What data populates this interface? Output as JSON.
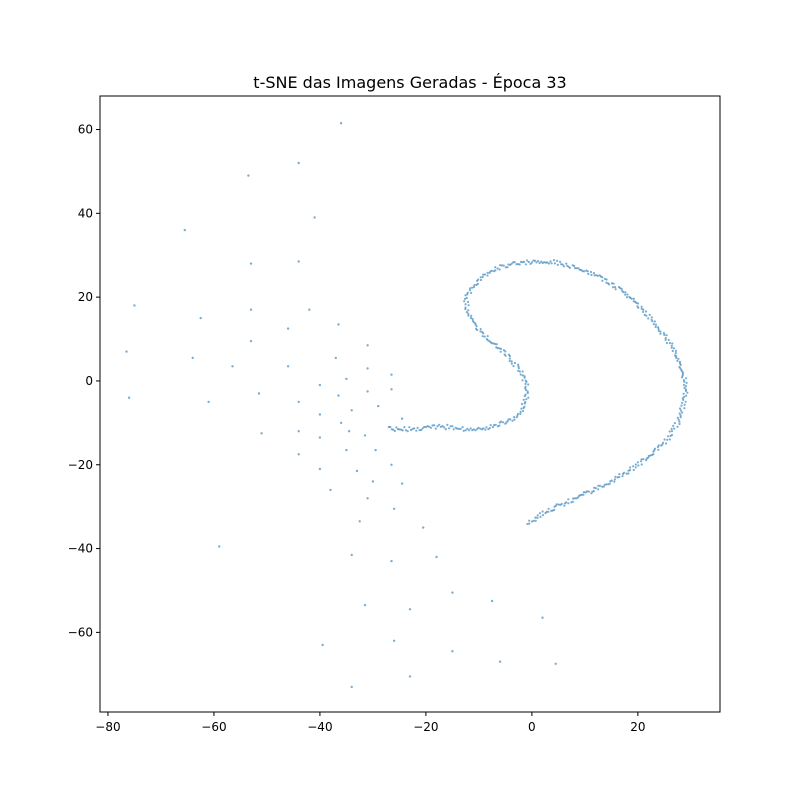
{
  "chart_data": {
    "type": "scatter",
    "title": "t-SNE das Imagens Geradas - Época 33",
    "xlabel": "",
    "ylabel": "",
    "xlim": [
      -81.5,
      35.5
    ],
    "ylim": [
      -79,
      68
    ],
    "x_ticks": [
      -80,
      -60,
      -40,
      -20,
      0,
      20
    ],
    "x_tick_labels": [
      "−80",
      "−60",
      "−40",
      "−20",
      "0",
      "20"
    ],
    "y_ticks": [
      -60,
      -40,
      -20,
      0,
      20,
      40,
      60
    ],
    "y_tick_labels": [
      "−60",
      "−40",
      "−20",
      "0",
      "20",
      "40",
      "60"
    ],
    "grid": false,
    "legend": "none",
    "marker_color": "#1f77b4",
    "marker_alpha": 0.6,
    "scattered_points": [
      [
        -36,
        61.5
      ],
      [
        -44,
        52
      ],
      [
        -53.5,
        49
      ],
      [
        -65.5,
        36
      ],
      [
        -41,
        39
      ],
      [
        -53,
        28
      ],
      [
        -44,
        28.5
      ],
      [
        -75,
        18
      ],
      [
        -62.5,
        15
      ],
      [
        -53,
        17
      ],
      [
        -42,
        17
      ],
      [
        -46,
        12.5
      ],
      [
        -36.5,
        13.5
      ],
      [
        -76.5,
        7
      ],
      [
        -64,
        5.5
      ],
      [
        -53,
        9.5
      ],
      [
        -56.5,
        3.5
      ],
      [
        -46,
        3.5
      ],
      [
        -37,
        5.5
      ],
      [
        -31,
        8.5
      ],
      [
        -31,
        3
      ],
      [
        -26.5,
        1.5
      ],
      [
        -35,
        0.5
      ],
      [
        -40,
        -1
      ],
      [
        -26.5,
        -2
      ],
      [
        -76,
        -4
      ],
      [
        -61,
        -5
      ],
      [
        -51.5,
        -3
      ],
      [
        -44,
        -5
      ],
      [
        -36.5,
        -3.5
      ],
      [
        -31,
        -2.5
      ],
      [
        -29,
        -6
      ],
      [
        -40,
        -8
      ],
      [
        -34,
        -7
      ],
      [
        -51,
        -12.5
      ],
      [
        -44,
        -12
      ],
      [
        -40,
        -13.5
      ],
      [
        -36,
        -10
      ],
      [
        -34.5,
        -12
      ],
      [
        -31.5,
        -13
      ],
      [
        -24.5,
        -9
      ],
      [
        -44,
        -17.5
      ],
      [
        -40,
        -21
      ],
      [
        -35,
        -16.5
      ],
      [
        -29.5,
        -16.5
      ],
      [
        -33,
        -21.5
      ],
      [
        -26.5,
        -20
      ],
      [
        -38,
        -26
      ],
      [
        -30,
        -24
      ],
      [
        -24.5,
        -24.5
      ],
      [
        -31,
        -28
      ],
      [
        -26,
        -30.5
      ],
      [
        -20.5,
        -35
      ],
      [
        -32.5,
        -33.5
      ],
      [
        -59,
        -39.5
      ],
      [
        -34,
        -41.5
      ],
      [
        -26.5,
        -43
      ],
      [
        -18,
        -42
      ],
      [
        -31.5,
        -53.5
      ],
      [
        -23,
        -54.5
      ],
      [
        -15,
        -50.5
      ],
      [
        -7.5,
        -52.5
      ],
      [
        2,
        -56.5
      ],
      [
        -39.5,
        -63
      ],
      [
        -26,
        -62
      ],
      [
        -15,
        -64.5
      ],
      [
        -6,
        -67
      ],
      [
        4.5,
        -67.5
      ],
      [
        -34,
        -73
      ],
      [
        -23,
        -70.5
      ]
    ],
    "curve_points": [
      [
        -27,
        -11.5
      ],
      [
        -25,
        -11.5
      ],
      [
        -22.5,
        -11.5
      ],
      [
        -20,
        -11
      ],
      [
        -17.5,
        -11
      ],
      [
        -15,
        -11
      ],
      [
        -12.5,
        -11.5
      ],
      [
        -10,
        -11.5
      ],
      [
        -8,
        -11
      ],
      [
        -6.5,
        -10.5
      ],
      [
        -3.5,
        -9
      ],
      [
        -2,
        -7
      ],
      [
        -1,
        -4
      ],
      [
        -1,
        -1
      ],
      [
        -2,
        2
      ],
      [
        -3.5,
        4.5
      ],
      [
        -5.5,
        7
      ],
      [
        -8,
        9.5
      ],
      [
        -10.5,
        13
      ],
      [
        -12,
        16.5
      ],
      [
        -12.5,
        19.5
      ],
      [
        -11,
        22.5
      ],
      [
        -9,
        25
      ],
      [
        -6.5,
        27
      ],
      [
        -3.5,
        28
      ],
      [
        0,
        28.5
      ],
      [
        3.5,
        28.5
      ],
      [
        7,
        27.5
      ],
      [
        10.5,
        26
      ],
      [
        14,
        24
      ],
      [
        17.5,
        21
      ],
      [
        20.5,
        17.5
      ],
      [
        23,
        14
      ],
      [
        25.5,
        10
      ],
      [
        27.5,
        6
      ],
      [
        28.5,
        2
      ],
      [
        29,
        -2
      ],
      [
        28.5,
        -6
      ],
      [
        27.5,
        -10
      ],
      [
        25.5,
        -14
      ],
      [
        23,
        -17
      ],
      [
        20,
        -20
      ],
      [
        17,
        -22.5
      ],
      [
        13.5,
        -25
      ],
      [
        10,
        -27
      ],
      [
        6.5,
        -29
      ],
      [
        3,
        -31
      ],
      [
        0.5,
        -33
      ],
      [
        -1,
        -34.5
      ]
    ]
  }
}
